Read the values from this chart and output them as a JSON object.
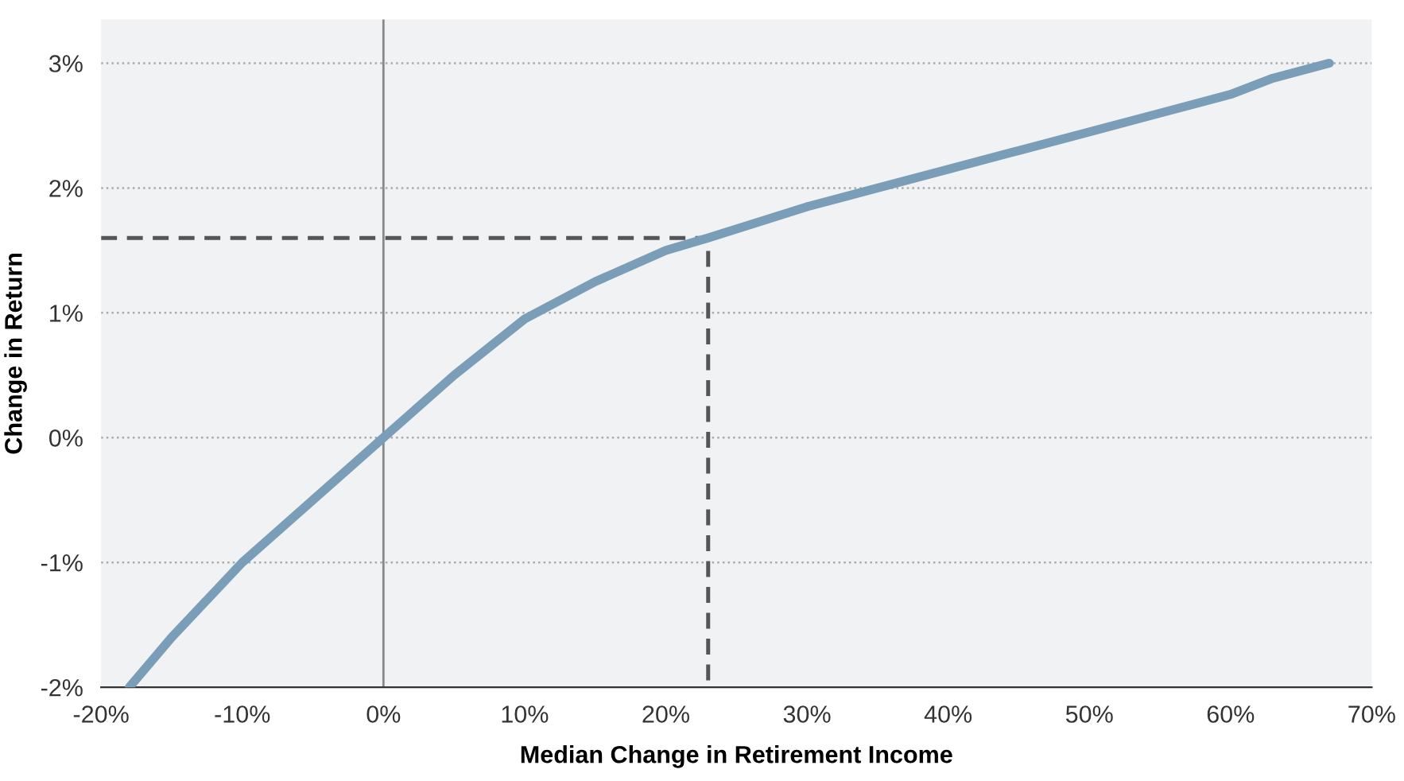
{
  "chart_data": {
    "type": "line",
    "xlabel": "Median Change in Retirement Income",
    "ylabel": "Change in Return",
    "xlim": [
      -20,
      70
    ],
    "xticks": [
      {
        "value": -20,
        "label": "-20%"
      },
      {
        "value": -10,
        "label": "-10%"
      },
      {
        "value": 0,
        "label": "0%"
      },
      {
        "value": 10,
        "label": "10%"
      },
      {
        "value": 20,
        "label": "20%"
      },
      {
        "value": 30,
        "label": "30%"
      },
      {
        "value": 40,
        "label": "40%"
      },
      {
        "value": 50,
        "label": "50%"
      },
      {
        "value": 60,
        "label": "60%"
      },
      {
        "value": 70,
        "label": "70%"
      }
    ],
    "ylim": [
      -2,
      3.35
    ],
    "yticks": [
      {
        "value": -2,
        "label": "-2%"
      },
      {
        "value": -1,
        "label": "-1%"
      },
      {
        "value": 0,
        "label": "0%"
      },
      {
        "value": 1,
        "label": "1%"
      },
      {
        "value": 2,
        "label": "2%"
      },
      {
        "value": 3,
        "label": "3%"
      }
    ],
    "grid": "y",
    "marker": "none",
    "series": [
      {
        "color": "#7a9db8",
        "line_style": "solid",
        "x": [
          -18,
          -15,
          -10,
          -5,
          0,
          5,
          10,
          15,
          20,
          23,
          30,
          35,
          40,
          45,
          50,
          55,
          60,
          63,
          67
        ],
        "values": [
          -2,
          -1.6,
          -1,
          -0.5,
          0,
          0.5,
          0.95,
          1.25,
          1.5,
          1.6,
          1.85,
          2.0,
          2.15,
          2.3,
          2.45,
          2.6,
          2.75,
          2.88,
          3.0
        ]
      },
      {
        "color": "#555555",
        "line_style": "dashed",
        "x": [
          -20,
          23,
          23
        ],
        "values": [
          1.6,
          1.6,
          -2
        ]
      }
    ],
    "ref_lines": [
      {
        "axis": "x",
        "value": 0,
        "color": "#888888",
        "line_style": "solid"
      }
    ]
  }
}
